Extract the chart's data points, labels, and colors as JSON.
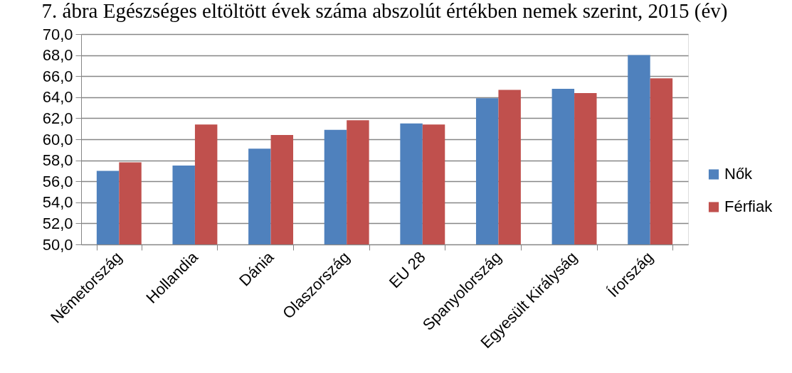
{
  "chart_data": {
    "type": "bar",
    "title": "7. ábra Egészséges eltöltött évek száma abszolút értékben nemek szerint, 2015 (év)",
    "categories": [
      "Németország",
      "Hollandia",
      "Dánia",
      "Olaszország",
      "EU 28",
      "Spanyolország",
      "Egyesült Királyság",
      "Írország"
    ],
    "series": [
      {
        "name": "Nők",
        "color": "#4f81bd",
        "values": [
          57.0,
          57.5,
          59.1,
          60.9,
          61.5,
          63.9,
          64.8,
          68.0
        ]
      },
      {
        "name": "Férfiak",
        "color": "#c0504d",
        "values": [
          57.8,
          61.4,
          60.4,
          61.8,
          61.4,
          64.7,
          64.4,
          65.8
        ]
      }
    ],
    "ylim": [
      50,
      70
    ],
    "yticks": [
      {
        "value": 50,
        "label": "50,0"
      },
      {
        "value": 52,
        "label": "52,0"
      },
      {
        "value": 54,
        "label": "54,0"
      },
      {
        "value": 56,
        "label": "56,0"
      },
      {
        "value": 58,
        "label": "58,0"
      },
      {
        "value": 60,
        "label": "60,0"
      },
      {
        "value": 62,
        "label": "62,0"
      },
      {
        "value": 64,
        "label": "64,0"
      },
      {
        "value": 66,
        "label": "66,0"
      },
      {
        "value": 68,
        "label": "68,0"
      },
      {
        "value": 70,
        "label": "70,0"
      }
    ],
    "grid": "y",
    "legend": "right"
  }
}
